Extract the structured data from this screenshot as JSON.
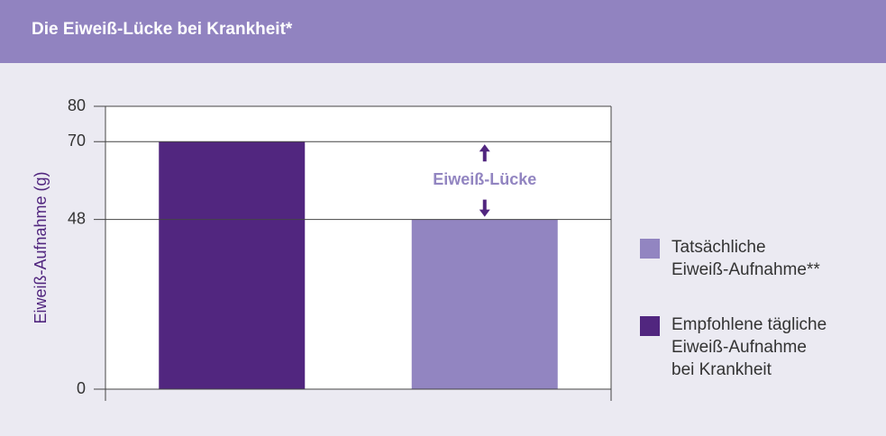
{
  "chart_data": {
    "type": "bar",
    "title": "Die Eiweiß-Lücke bei Krankheit*",
    "y_label": "Eiweiß-Aufnahme (g)",
    "annotation": "Eiweiß-Lücke",
    "categories": [
      null,
      null
    ],
    "series": [
      {
        "name": "Tatsächliche\nEiweiß-Aufnahme**",
        "color": "#9285c1",
        "values": [
          null,
          48
        ]
      },
      {
        "name": "Empfohlene tägliche\nEiweiß-Aufnahme\nbei Krankheit",
        "color": "#51267f",
        "values": [
          70,
          null
        ]
      }
    ],
    "ylim": [
      0,
      80
    ],
    "yticks": [
      0,
      48,
      70,
      80
    ],
    "grid": true
  }
}
